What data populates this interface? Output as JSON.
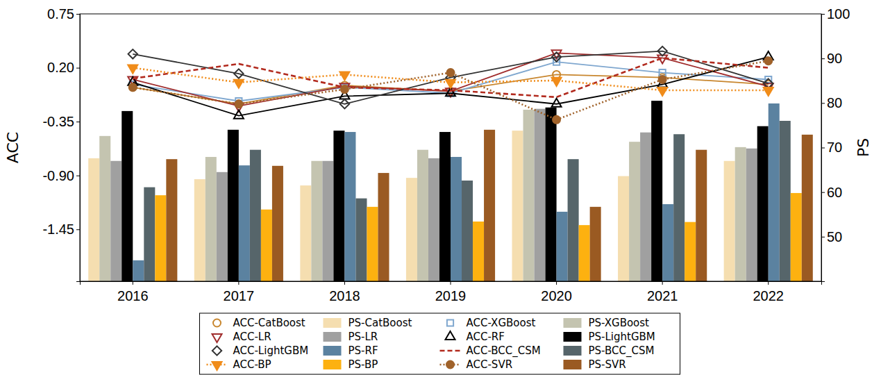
{
  "chart_data": {
    "type": "bar",
    "ylabel": "ACC",
    "y2label": "PS",
    "categories": [
      "2016",
      "2017",
      "2018",
      "2019",
      "2020",
      "2021",
      "2022"
    ],
    "ylim": [
      -1.98,
      0.75
    ],
    "yticks": [
      -1.45,
      {
        "value": -0.9,
        "label": "-0.90"
      },
      -0.35,
      {
        "value": 0.2,
        "label": "0.20"
      },
      0.75
    ],
    "y2lim": [
      40,
      100
    ],
    "y2ticks": [
      50,
      60,
      70,
      80,
      90,
      100
    ],
    "grid": false,
    "legend": "bottom",
    "series": [
      {
        "name": "ACC-CatBoost",
        "type": "line",
        "color": "#c8862e",
        "marker": "open-circle",
        "line_style": "solid",
        "values": [
          0.0,
          -0.17,
          0.02,
          -0.04,
          0.13,
          0.1,
          0.03
        ]
      },
      {
        "name": "PS-CatBoost",
        "type": "bar",
        "axis": "y2",
        "color": "#f5deb0",
        "values": [
          67.6,
          62.9,
          61.5,
          63.2,
          73.8,
          63.6,
          67.0
        ]
      },
      {
        "name": "ACC-XGBoost",
        "type": "line",
        "color": "#7fa7cf",
        "marker": "open-square",
        "line_style": "solid",
        "values": [
          0.03,
          -0.14,
          0.0,
          -0.06,
          0.26,
          0.15,
          0.08
        ]
      },
      {
        "name": "PS-XGBoost",
        "type": "bar",
        "axis": "y2",
        "color": "#c4c4b0",
        "values": [
          72.6,
          67.9,
          67.0,
          69.5,
          78.5,
          71.3,
          70.1
        ]
      },
      {
        "name": "ACC-LR",
        "type": "line",
        "color": "#a02c2c",
        "marker": "open-triangle-down",
        "line_style": "solid",
        "values": [
          0.08,
          -0.19,
          0.01,
          -0.04,
          0.35,
          0.3,
          0.01
        ]
      },
      {
        "name": "PS-LR",
        "type": "bar",
        "axis": "y2",
        "color": "#a0a0a0",
        "values": [
          67.0,
          64.5,
          67.0,
          67.6,
          78.7,
          73.4,
          69.8
        ]
      },
      {
        "name": "ACC-RF",
        "type": "line",
        "color": "#000000",
        "marker": "open-triangle-up",
        "line_style": "solid",
        "values": [
          0.05,
          -0.29,
          -0.09,
          -0.06,
          -0.17,
          0.03,
          0.31
        ]
      },
      {
        "name": "PS-LightGBM",
        "type": "bar",
        "axis": "y2",
        "color": "#000000",
        "values": [
          78.2,
          74.0,
          73.8,
          73.5,
          79.0,
          80.5,
          74.8
        ]
      },
      {
        "name": "ACC-LightGBM",
        "type": "line",
        "color": "#333333",
        "marker": "open-diamond",
        "line_style": "solid",
        "values": [
          0.34,
          0.14,
          -0.17,
          0.1,
          0.31,
          0.37,
          0.04
        ]
      },
      {
        "name": "PS-RF",
        "type": "bar",
        "axis": "y2",
        "color": "#5b82a0",
        "values": [
          44.7,
          66.0,
          73.5,
          67.9,
          55.6,
          57.3,
          79.9
        ]
      },
      {
        "name": "ACC-BCC_CSM",
        "type": "line",
        "color": "#b22a1e",
        "line_style": "dashed",
        "values": [
          0.09,
          0.24,
          0.0,
          -0.03,
          -0.1,
          0.3,
          0.2
        ]
      },
      {
        "name": "PS-BCC_CSM",
        "type": "bar",
        "axis": "y2",
        "color": "#56656a",
        "values": [
          61.1,
          69.5,
          58.6,
          62.6,
          67.4,
          73.0,
          76.0
        ]
      },
      {
        "name": "ACC-BP",
        "type": "line",
        "color": "#f08c1a",
        "marker": "filled-triangle-down",
        "line_style": "dotted",
        "values": [
          0.2,
          0.05,
          0.13,
          0.05,
          0.07,
          -0.03,
          -0.03
        ]
      },
      {
        "name": "PS-BP",
        "type": "bar",
        "axis": "y2",
        "color": "#fdb110",
        "values": [
          59.3,
          56.1,
          56.7,
          53.4,
          52.6,
          53.3,
          59.8
        ]
      },
      {
        "name": "ACC-SVR",
        "type": "line",
        "color": "#a0622a",
        "marker": "filled-circle",
        "line_style": "dotted",
        "values": [
          0.0,
          -0.17,
          -0.02,
          0.15,
          -0.33,
          0.08,
          0.27
        ]
      },
      {
        "name": "PS-SVR",
        "type": "bar",
        "axis": "y2",
        "color": "#9a5a22",
        "values": [
          67.4,
          65.9,
          64.3,
          74.0,
          56.7,
          69.5,
          72.9
        ]
      }
    ]
  }
}
